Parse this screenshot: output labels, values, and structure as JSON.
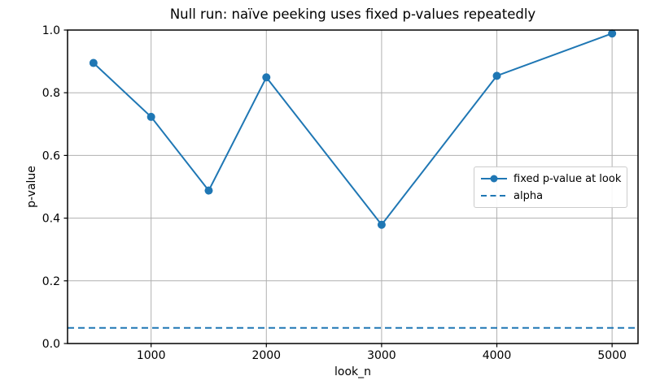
{
  "chart_data": {
    "type": "line",
    "title": "Null run: naïve peeking uses fixed p-values repeatedly",
    "xlabel": "look_n",
    "ylabel": "p-value",
    "xlim": [
      275,
      5225
    ],
    "ylim": [
      0.0,
      1.0
    ],
    "x_ticks": [
      1000,
      2000,
      3000,
      4000,
      5000
    ],
    "y_ticks": [
      0.0,
      0.2,
      0.4,
      0.6,
      0.8,
      1.0
    ],
    "grid": true,
    "legend_position": "center right",
    "series": [
      {
        "name": "fixed p-value at look",
        "type": "line+markers",
        "style": "solid",
        "color": "#1f77b4",
        "x": [
          500,
          1000,
          1500,
          2000,
          3000,
          4000,
          5000
        ],
        "y": [
          0.895,
          0.723,
          0.488,
          0.849,
          0.379,
          0.854,
          0.989
        ]
      },
      {
        "name": "alpha",
        "type": "hline",
        "style": "dashed",
        "color": "#1f77b4",
        "y": 0.05
      }
    ],
    "colors": {
      "grid": "#b0b0b0",
      "spine": "#000000",
      "text": "#000000",
      "background": "#ffffff",
      "legend_border": "#cccccc"
    }
  }
}
